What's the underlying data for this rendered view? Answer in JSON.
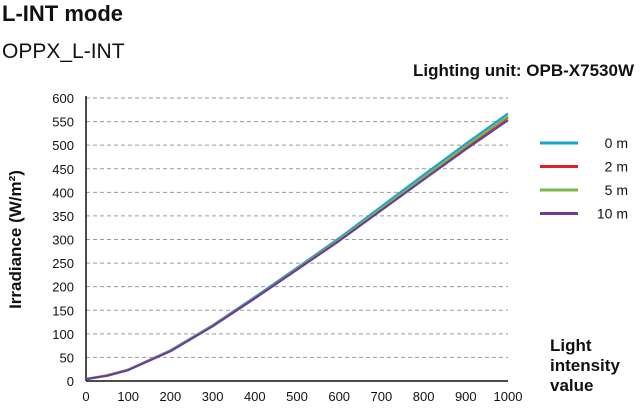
{
  "header": {
    "title": "L-INT mode",
    "subtitle": "OPPX_L-INT",
    "unit_label": "Lighting unit: OPB-X7530W"
  },
  "chart_data": {
    "type": "line",
    "title": "L-INT mode",
    "xlabel": "Light intensity value",
    "ylabel": "Irradiance (W/m²)",
    "xlim": [
      0,
      1000
    ],
    "ylim": [
      0,
      600
    ],
    "xticks": [
      0,
      100,
      200,
      300,
      400,
      500,
      600,
      700,
      800,
      900,
      1000
    ],
    "yticks": [
      0,
      50,
      100,
      150,
      200,
      250,
      300,
      350,
      400,
      450,
      500,
      550,
      600
    ],
    "grid": "horizontal-dashed",
    "legend_position": "right",
    "x": [
      0,
      50,
      100,
      200,
      300,
      400,
      500,
      600,
      700,
      800,
      900,
      1000
    ],
    "series": [
      {
        "name": "0 m",
        "color": "#1aa0d8",
        "values": [
          4,
          12,
          24,
          65,
          118,
          178,
          240,
          303,
          370,
          437,
          503,
          567
        ]
      },
      {
        "name": "2 m",
        "color": "#e02020",
        "values": [
          4,
          12,
          24,
          64,
          117,
          176,
          238,
          300,
          365,
          431,
          496,
          559
        ]
      },
      {
        "name": "5 m",
        "color": "#7ab648",
        "values": [
          4,
          12,
          24,
          64,
          117,
          176,
          238,
          300,
          366,
          432,
          498,
          561
        ]
      },
      {
        "name": "10 m",
        "color": "#6a3d9a",
        "values": [
          4,
          11,
          23,
          63,
          116,
          175,
          236,
          297,
          362,
          427,
          491,
          553
        ]
      }
    ]
  }
}
